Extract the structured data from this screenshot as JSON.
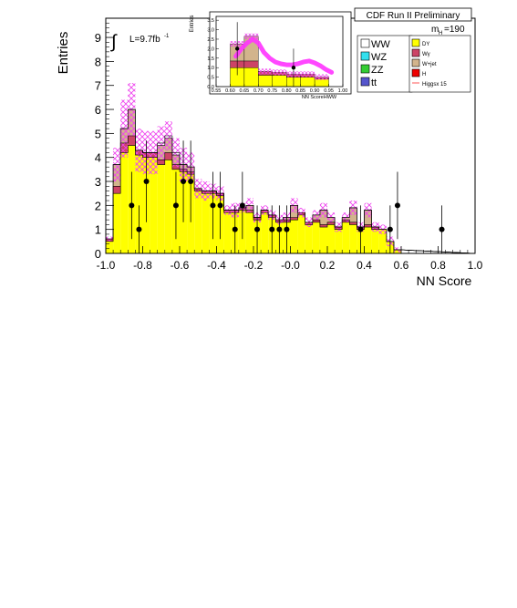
{
  "header": {
    "title": "CDF Run II Preliminary"
  },
  "chart_data": {
    "type": "histogram",
    "xlabel": "NN Score",
    "ylabel": "Entries",
    "xlim": [
      -1.0,
      1.0
    ],
    "ylim": [
      0,
      9.8
    ],
    "x_ticks": [
      "-1.0",
      "-0.8",
      "-0.6",
      "-0.4",
      "-0.2",
      "-0.0",
      "0.2",
      "0.4",
      "0.6",
      "0.8",
      "1.0"
    ],
    "y_ticks": [
      "0",
      "1",
      "2",
      "3",
      "4",
      "5",
      "6",
      "7",
      "8",
      "9"
    ],
    "lumi_label": "L=9.7fb",
    "lumi_sup": "-1",
    "mass_label": "m",
    "mass_sub": "H",
    "mass_value": "=190",
    "bin_edges_start": -1.0,
    "bin_width": 0.04,
    "stack": {
      "DY": [
        0.5,
        2.5,
        4.2,
        4.5,
        4.1,
        4.0,
        4.0,
        3.7,
        3.9,
        3.5,
        3.4,
        3.3,
        2.6,
        2.5,
        2.5,
        2.4,
        1.7,
        1.7,
        1.8,
        1.7,
        1.4,
        1.7,
        1.5,
        1.3,
        1.3,
        1.4,
        1.6,
        1.2,
        1.3,
        1.1,
        1.2,
        1.0,
        1.3,
        1.2,
        1.0,
        1.1,
        1.0,
        1.0,
        0.5,
        0.15
      ],
      "Wgamma": [
        0.1,
        0.3,
        0.4,
        0.4,
        0.2,
        0.2,
        0.2,
        0.2,
        0.3,
        0.2,
        0.1,
        0.1,
        0.1,
        0.1,
        0.1,
        0.1,
        0.1,
        0.1,
        0.1,
        0.1,
        0.1,
        0.1,
        0.1,
        0.1,
        0.1,
        0.1,
        0.1,
        0.1,
        0.1,
        0.1,
        0.1,
        0.1,
        0.1,
        0.1,
        0.1,
        0.1,
        0.1,
        0.0,
        0.0,
        0.0
      ],
      "Wjet": [
        0.0,
        0.9,
        0.6,
        1.1,
        0.0,
        0.0,
        0.0,
        0.6,
        0.6,
        0.4,
        0.2,
        0.2,
        0.0,
        0.0,
        0.0,
        0.0,
        0.0,
        0.0,
        0.0,
        0.2,
        0.0,
        0.0,
        0.0,
        0.0,
        0.1,
        0.5,
        0.0,
        0.0,
        0.2,
        0.6,
        0.2,
        0.0,
        0.1,
        0.6,
        0.0,
        0.6,
        0.0,
        0.0,
        0.0,
        0.0
      ],
      "other": [
        0.0,
        0.0,
        0.0,
        0.0,
        0.0,
        0.0,
        0.0,
        0.1,
        0.1,
        0.1,
        0.0,
        0.0,
        0.0,
        0.0,
        0.0,
        0.0,
        0.0,
        0.0,
        0.0,
        0.0,
        0.0,
        0.0,
        0.0,
        0.0,
        0.0,
        0.0,
        0.0,
        0.0,
        0.0,
        0.0,
        0.0,
        0.0,
        0.0,
        0.0,
        0.0,
        0.0,
        0.0,
        0.0,
        0.0,
        0.0
      ]
    },
    "uncertainty": [
      0.1,
      0.7,
      1.2,
      1.1,
      0.9,
      0.9,
      0.9,
      0.7,
      0.6,
      0.6,
      0.7,
      0.6,
      0.4,
      0.4,
      0.3,
      0.3,
      0.2,
      0.3,
      0.2,
      0.3,
      0.2,
      0.2,
      0.2,
      0.2,
      0.2,
      0.3,
      0.2,
      0.2,
      0.2,
      0.3,
      0.2,
      0.2,
      0.2,
      0.3,
      0.2,
      0.3,
      0.2,
      0.2,
      0.2,
      0.1
    ],
    "data_points": [
      {
        "x": -0.86,
        "y": 2,
        "err": 1.4
      },
      {
        "x": -0.82,
        "y": 1,
        "err": 1.0
      },
      {
        "x": -0.78,
        "y": 3,
        "err": 1.7
      },
      {
        "x": -0.62,
        "y": 2,
        "err": 1.4
      },
      {
        "x": -0.58,
        "y": 3,
        "err": 1.7
      },
      {
        "x": -0.54,
        "y": 3,
        "err": 1.7
      },
      {
        "x": -0.42,
        "y": 2,
        "err": 1.4
      },
      {
        "x": -0.38,
        "y": 2,
        "err": 1.4
      },
      {
        "x": -0.3,
        "y": 1,
        "err": 1.0
      },
      {
        "x": -0.26,
        "y": 2,
        "err": 1.4
      },
      {
        "x": -0.18,
        "y": 1,
        "err": 1.0
      },
      {
        "x": -0.1,
        "y": 1,
        "err": 1.0
      },
      {
        "x": -0.06,
        "y": 1,
        "err": 1.0
      },
      {
        "x": -0.02,
        "y": 1,
        "err": 1.0
      },
      {
        "x": 0.38,
        "y": 1,
        "err": 1.0
      },
      {
        "x": 0.54,
        "y": 1,
        "err": 1.0
      },
      {
        "x": 0.58,
        "y": 2,
        "err": 1.4
      },
      {
        "x": 0.82,
        "y": 1,
        "err": 1.0
      }
    ],
    "legend": [
      {
        "label": "WW",
        "color": "#ffffff"
      },
      {
        "label": "WZ",
        "color": "#33e0ee"
      },
      {
        "label": "ZZ",
        "color": "#33cc33"
      },
      {
        "label": "tt",
        "color": "#5555cc"
      },
      {
        "label": "DY",
        "color": "#ffff00"
      },
      {
        "label": "Wγ",
        "color": "#cc4466"
      },
      {
        "label": "W+jet",
        "color": "#d2b48c"
      },
      {
        "label": "H",
        "color": "#ee0000"
      },
      {
        "label": "Higgsx 15",
        "color": "#ff5555"
      }
    ],
    "inset": {
      "xlabel": "NN ScoreHWW",
      "ylabel": "Entries",
      "xlim": [
        0.55,
        1.0
      ],
      "ylim": [
        0,
        3.7
      ],
      "x_ticks": [
        "0.55",
        "0.60",
        "0.65",
        "0.70",
        "0.75",
        "0.80",
        "0.85",
        "0.90",
        "0.95",
        "1.00"
      ],
      "y_ticks": [
        "0.0",
        "0.5",
        "1.0",
        "1.5",
        "2.0",
        "2.5",
        "3.0",
        "3.5"
      ],
      "bin_edges": [
        0.55,
        0.6,
        0.65,
        0.7,
        0.75,
        0.8,
        0.85,
        0.9,
        0.95,
        1.0
      ],
      "DY": [
        0.0,
        1.0,
        1.0,
        0.6,
        0.6,
        0.5,
        0.5,
        0.4,
        0.0
      ],
      "Wgamma": [
        0.0,
        0.35,
        0.35,
        0.2,
        0.15,
        0.15,
        0.15,
        0.1,
        0.0
      ],
      "Wjet": [
        0.0,
        0.9,
        1.3,
        0.0,
        0.0,
        0.0,
        0.0,
        0.0,
        0.0
      ],
      "higgs_x": [
        0.62,
        0.64,
        0.66,
        0.68,
        0.7,
        0.72,
        0.74,
        0.76,
        0.78,
        0.8,
        0.82,
        0.84,
        0.86,
        0.88,
        0.9,
        0.92,
        0.94,
        0.96
      ],
      "higgs_y": [
        1.6,
        2.0,
        2.3,
        2.5,
        2.3,
        1.8,
        1.5,
        1.3,
        1.2,
        1.15,
        1.15,
        1.2,
        1.3,
        1.35,
        1.25,
        1.1,
        0.9,
        0.75
      ],
      "data_points": [
        {
          "x": 0.625,
          "y": 2,
          "err": 1.4
        },
        {
          "x": 0.825,
          "y": 1,
          "err": 1.0
        }
      ]
    }
  }
}
